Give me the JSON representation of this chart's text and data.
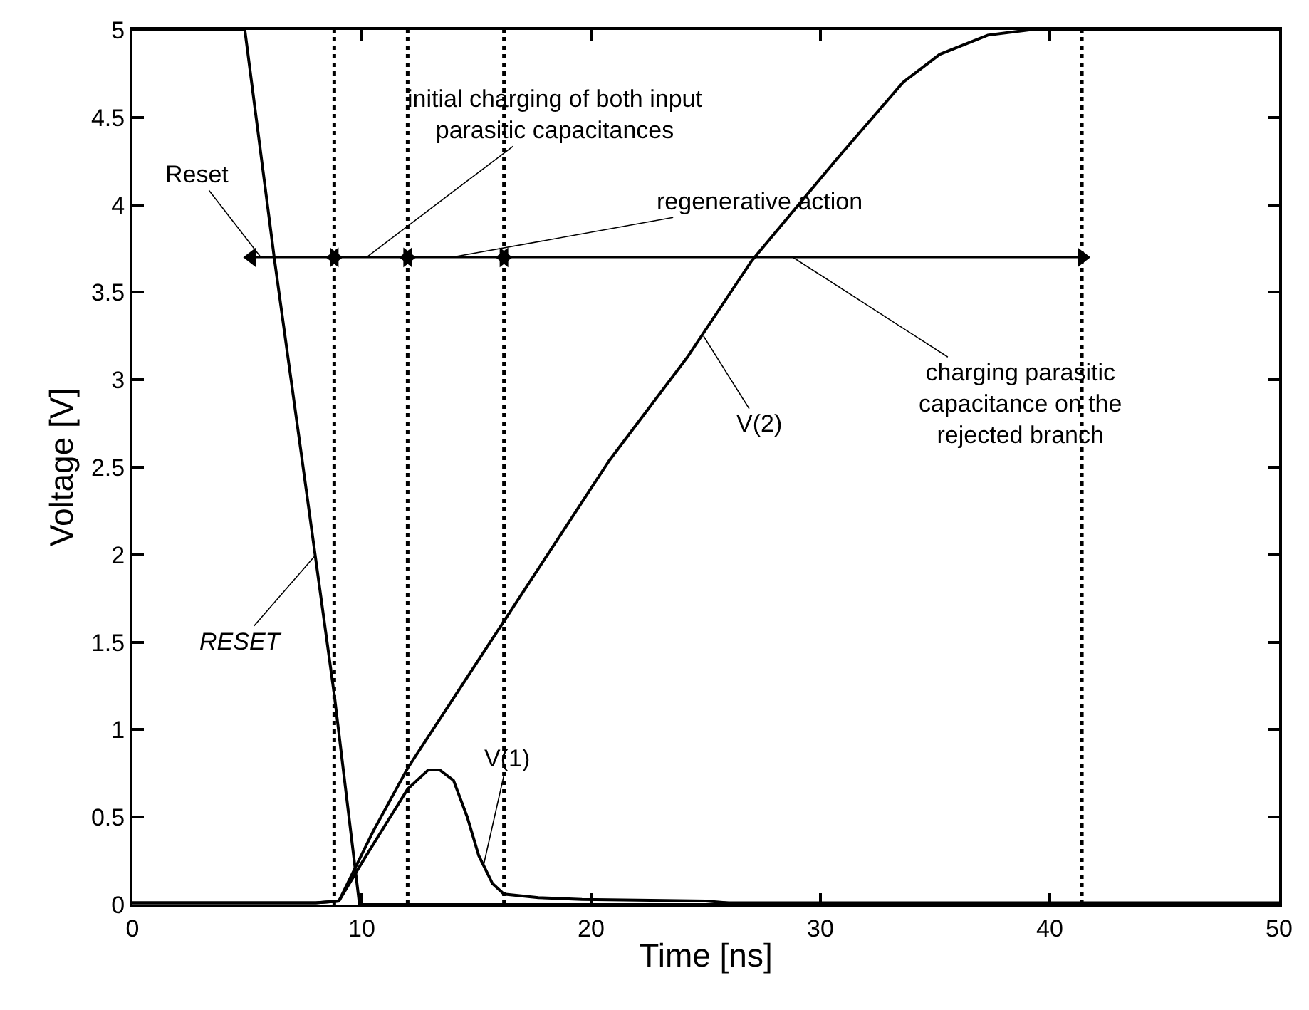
{
  "chart_data": {
    "type": "line",
    "xlabel": "Time [ns]",
    "ylabel": "Voltage [V]",
    "xlim": [
      0,
      50
    ],
    "ylim": [
      0,
      5
    ],
    "xticks": [
      0,
      10,
      20,
      30,
      40,
      50
    ],
    "yticks": [
      0,
      0.5,
      1,
      1.5,
      2,
      2.5,
      3,
      3.5,
      4,
      4.5,
      5
    ],
    "marker": "none",
    "line_style": "solid",
    "series": [
      {
        "color": "#000000",
        "x": [
          0,
          4.9,
          6.2,
          7.4,
          8.8,
          9.9,
          50
        ],
        "values": [
          5,
          5,
          3.68,
          2.54,
          1.2,
          0,
          0
        ]
      },
      {
        "color": "#000000",
        "x": [
          0,
          8.0,
          9.0,
          10.1,
          11.0,
          12.0,
          12.9,
          13.4,
          14.0,
          14.6,
          15.1,
          15.7,
          16.2,
          17.7,
          19.6,
          25,
          26,
          50
        ],
        "values": [
          0.01,
          0.01,
          0.02,
          0.26,
          0.45,
          0.66,
          0.77,
          0.77,
          0.71,
          0.5,
          0.28,
          0.12,
          0.06,
          0.04,
          0.03,
          0.02,
          0.01,
          0.01
        ]
      },
      {
        "color": "#000000",
        "x": [
          0,
          8.0,
          9.0,
          10.5,
          12.0,
          16.2,
          20.8,
          24.2,
          27.0,
          30.7,
          33.6,
          35.2,
          37.3,
          39.1,
          50
        ],
        "values": [
          0.01,
          0.01,
          0.02,
          0.42,
          0.78,
          1.62,
          2.54,
          3.13,
          3.68,
          4.26,
          4.7,
          4.86,
          4.97,
          5,
          5
        ]
      },
      {
        "color": "#000000",
        "marker": "triangle",
        "x": [
          5.2,
          8.8
        ],
        "values": [
          3.7,
          3.7
        ]
      },
      {
        "color": "#000000",
        "marker": "triangle",
        "x": [
          8.8,
          12.0
        ],
        "values": [
          3.7,
          3.7
        ]
      },
      {
        "color": "#000000",
        "marker": "triangle",
        "x": [
          12.0,
          16.2
        ],
        "values": [
          3.7,
          3.7
        ]
      },
      {
        "color": "#000000",
        "marker": "triangle",
        "x": [
          16.2,
          41.4
        ],
        "values": [
          3.7,
          3.7
        ]
      }
    ],
    "ref_lines": [
      {
        "axis": "x",
        "value": 8.8,
        "line_style": "dotted",
        "color": "#000000"
      },
      {
        "axis": "x",
        "value": 12.0,
        "line_style": "dotted",
        "color": "#000000"
      },
      {
        "axis": "x",
        "value": 16.2,
        "line_style": "dotted",
        "color": "#000000"
      },
      {
        "axis": "x",
        "value": 41.4,
        "line_style": "dotted",
        "color": "#000000"
      }
    ],
    "annotations": [
      {
        "text": "Reset",
        "x": 5.6,
        "y": 3.7
      },
      {
        "text": "initial charging of both input\nparasitic capacitances",
        "x": 10.2,
        "y": 3.7
      },
      {
        "text": "regenerative action",
        "x": 13.9,
        "y": 3.7
      },
      {
        "text": "charging parasitic\ncapacitance on the\nrejected branch",
        "x": 28.8,
        "y": 3.7
      },
      {
        "text": "V(2)",
        "x": 24.9,
        "y": 3.25
      },
      {
        "text": "V(1)",
        "x": 15.3,
        "y": 0.22
      },
      {
        "text": "RESET",
        "x": 8.0,
        "y": 2.0
      }
    ]
  }
}
